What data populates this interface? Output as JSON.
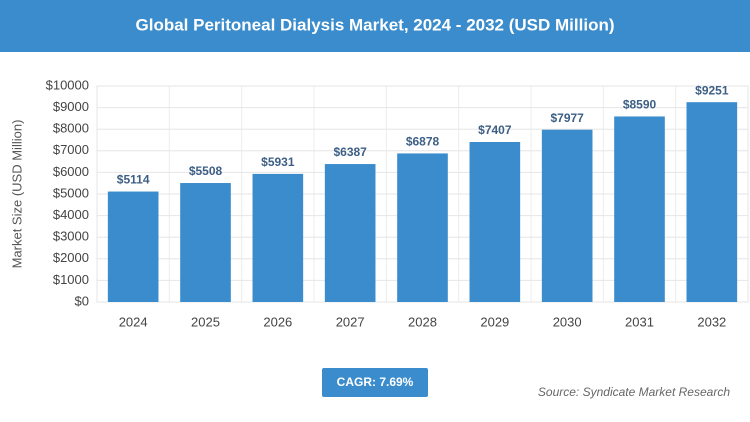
{
  "chart_data": {
    "type": "bar",
    "title": "Global Peritoneal Dialysis Market, 2024 - 2032 (USD Million)",
    "y_label": "Market Size (USD Million)",
    "categories": [
      "2024",
      "2025",
      "2026",
      "2027",
      "2028",
      "2029",
      "2030",
      "2031",
      "2032"
    ],
    "values": [
      5114,
      5508,
      5931,
      6387,
      6878,
      7407,
      7977,
      8590,
      9251
    ],
    "value_labels": [
      "$5114",
      "$5508",
      "$5931",
      "$6387",
      "$6878",
      "$7407",
      "$7977",
      "$8590",
      "$9251"
    ],
    "color": "#3a8ccc",
    "ylim": [
      0,
      10000
    ],
    "yticks": [
      {
        "value": 0,
        "label": "$0"
      },
      {
        "value": 1000,
        "label": "$1000"
      },
      {
        "value": 2000,
        "label": "$2000"
      },
      {
        "value": 3000,
        "label": "$3000"
      },
      {
        "value": 4000,
        "label": "$4000"
      },
      {
        "value": 5000,
        "label": "$5000"
      },
      {
        "value": 6000,
        "label": "$6000"
      },
      {
        "value": 7000,
        "label": "$7000"
      },
      {
        "value": 8000,
        "label": "$8000"
      },
      {
        "value": 9000,
        "label": "$9000"
      },
      {
        "value": 10000,
        "label": "$10000"
      }
    ],
    "grid": true,
    "cagr": "CAGR: 7.69%",
    "source": "Source: Syndicate Market Research"
  }
}
